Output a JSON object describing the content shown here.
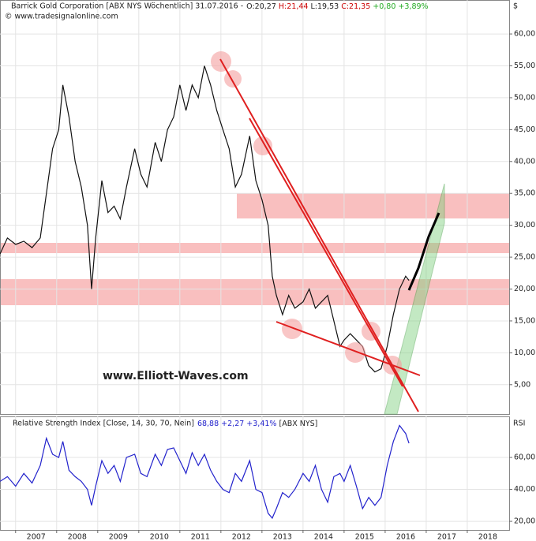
{
  "chart_data": [
    {
      "type": "line",
      "title": "Barrick Gold Corporation [ABX NYS  Wöchentlich] 31.07.2016 -",
      "quote": [
        "O:20,27",
        "H:21,44",
        "L:19,53",
        "C:21,35",
        "+0,80",
        "+3,89%"
      ],
      "source": "© www.tradesignalonline.com",
      "unit": "$",
      "annotation": "www.Elliott-Waves.com",
      "color": "#111111",
      "x": [
        2006.62,
        2006.8,
        2007.0,
        2007.2,
        2007.4,
        2007.6,
        2007.75,
        2007.9,
        2008.05,
        2008.15,
        2008.3,
        2008.45,
        2008.6,
        2008.75,
        2008.85,
        2008.95,
        2009.1,
        2009.25,
        2009.4,
        2009.55,
        2009.7,
        2009.9,
        2010.05,
        2010.2,
        2010.4,
        2010.55,
        2010.7,
        2010.85,
        2011.0,
        2011.15,
        2011.3,
        2011.45,
        2011.6,
        2011.75,
        2011.9,
        2012.05,
        2012.2,
        2012.35,
        2012.5,
        2012.7,
        2012.85,
        2013.0,
        2013.15,
        2013.25,
        2013.35,
        2013.5,
        2013.65,
        2013.8,
        2014.0,
        2014.15,
        2014.3,
        2014.45,
        2014.6,
        2014.75,
        2014.9,
        2015.0,
        2015.15,
        2015.3,
        2015.45,
        2015.6,
        2015.75,
        2015.9,
        2016.05,
        2016.2,
        2016.35,
        2016.5,
        2016.58
      ],
      "values": [
        25.5,
        28,
        27,
        27.5,
        26.5,
        28,
        35,
        42,
        45,
        52,
        47,
        40,
        36,
        30,
        20,
        28,
        37,
        32,
        33,
        31,
        36,
        42,
        38,
        36,
        43,
        40,
        45,
        47,
        52,
        48,
        52,
        50,
        55,
        52,
        48,
        45,
        42,
        36,
        38,
        44,
        37,
        34,
        30,
        22,
        19,
        16,
        19,
        17,
        18,
        20,
        17,
        18,
        19,
        15,
        11,
        12,
        13,
        12,
        11,
        8,
        7,
        7.5,
        11,
        16,
        20,
        22,
        21.35
      ],
      "xlim": [
        2006.62,
        2019.02
      ],
      "xticks": [
        2007,
        2008,
        2009,
        2010,
        2011,
        2012,
        2013,
        2014,
        2015,
        2016,
        2017,
        2018
      ],
      "ylim": [
        0.4,
        63.1
      ],
      "yticks": [
        {
          "value": 5,
          "label": "5,00"
        },
        {
          "value": 10,
          "label": "10,00"
        },
        {
          "value": 15,
          "label": "15,00"
        },
        {
          "value": 20,
          "label": "20,00"
        },
        {
          "value": 25,
          "label": "25,00"
        },
        {
          "value": 30,
          "label": "30,00"
        },
        {
          "value": 35,
          "label": "35,00"
        },
        {
          "value": 40,
          "label": "40,00"
        },
        {
          "value": 45,
          "label": "45,00"
        },
        {
          "value": 50,
          "label": "50,00"
        },
        {
          "value": 55,
          "label": "55,00"
        },
        {
          "value": 60,
          "label": "60,00"
        }
      ],
      "grid": true
    },
    {
      "type": "line",
      "title": "Relative Strength Index [Close, 14, 30, 70, Nein]",
      "quote": [
        "68,88 +2,27 +3,41%",
        "[ABX NYS]"
      ],
      "unit": "RSI",
      "color": "#2222cc",
      "x": [
        2006.62,
        2006.8,
        2007.0,
        2007.2,
        2007.4,
        2007.6,
        2007.75,
        2007.9,
        2008.05,
        2008.15,
        2008.3,
        2008.45,
        2008.6,
        2008.75,
        2008.85,
        2008.95,
        2009.1,
        2009.25,
        2009.4,
        2009.55,
        2009.7,
        2009.9,
        2010.05,
        2010.2,
        2010.4,
        2010.55,
        2010.7,
        2010.85,
        2011.0,
        2011.15,
        2011.3,
        2011.45,
        2011.6,
        2011.75,
        2011.9,
        2012.05,
        2012.2,
        2012.35,
        2012.5,
        2012.7,
        2012.85,
        2013.0,
        2013.15,
        2013.25,
        2013.35,
        2013.5,
        2013.65,
        2013.8,
        2014.0,
        2014.15,
        2014.3,
        2014.45,
        2014.6,
        2014.75,
        2014.9,
        2015.0,
        2015.15,
        2015.3,
        2015.45,
        2015.6,
        2015.75,
        2015.9,
        2016.05,
        2016.2,
        2016.35,
        2016.5,
        2016.58
      ],
      "values": [
        45,
        48,
        42,
        50,
        44,
        55,
        72,
        62,
        60,
        70,
        52,
        48,
        45,
        40,
        30,
        42,
        58,
        50,
        55,
        45,
        60,
        62,
        50,
        48,
        62,
        55,
        65,
        66,
        58,
        50,
        63,
        55,
        62,
        52,
        45,
        40,
        38,
        50,
        45,
        58,
        40,
        38,
        25,
        22,
        28,
        38,
        35,
        40,
        50,
        45,
        55,
        40,
        32,
        48,
        50,
        45,
        55,
        42,
        28,
        35,
        30,
        35,
        55,
        70,
        80,
        75,
        68.88
      ],
      "xlim": [
        2006.62,
        2019.02
      ],
      "xticks": [
        2007,
        2008,
        2009,
        2010,
        2011,
        2012,
        2013,
        2014,
        2015,
        2016,
        2017,
        2018
      ],
      "ylim": [
        14.6,
        85.7
      ],
      "yticks": [
        {
          "value": 20,
          "label": "20,00"
        },
        {
          "value": 40,
          "label": "40,00"
        },
        {
          "value": 60,
          "label": "60,00"
        }
      ],
      "grid": true
    }
  ]
}
